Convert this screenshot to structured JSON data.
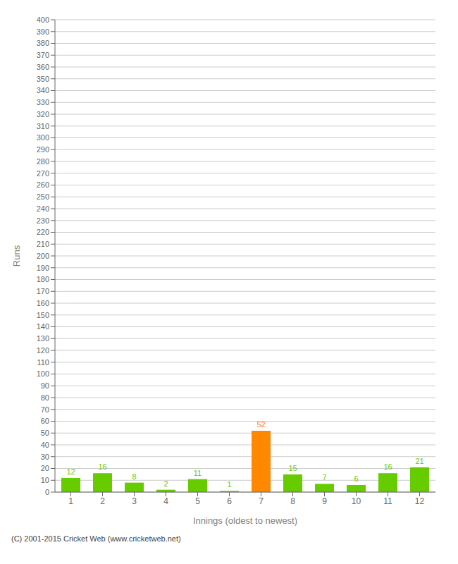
{
  "chart_data": {
    "type": "bar",
    "categories": [
      "1",
      "2",
      "3",
      "4",
      "5",
      "6",
      "7",
      "8",
      "9",
      "10",
      "11",
      "12"
    ],
    "values": [
      12,
      16,
      8,
      2,
      11,
      1,
      52,
      15,
      7,
      6,
      16,
      21
    ],
    "colors": [
      "#66cc00",
      "#66cc00",
      "#66cc00",
      "#66cc00",
      "#66cc00",
      "#66cc00",
      "#ff8800",
      "#66cc00",
      "#66cc00",
      "#66cc00",
      "#66cc00",
      "#66cc00"
    ],
    "xlabel": "Innings (oldest to newest)",
    "ylabel": "Runs",
    "ylim": [
      0,
      400
    ],
    "yticks": [
      0,
      10,
      20,
      30,
      40,
      50,
      60,
      70,
      80,
      90,
      100,
      110,
      120,
      130,
      140,
      150,
      160,
      170,
      180,
      190,
      200,
      210,
      220,
      230,
      240,
      250,
      260,
      270,
      280,
      290,
      300,
      310,
      320,
      330,
      340,
      350,
      360,
      370,
      380,
      390,
      400
    ],
    "grid": true,
    "data_labels": true,
    "annotations": [
      "(C) 2001-2015 Cricket Web (www.cricketweb.net)"
    ]
  }
}
